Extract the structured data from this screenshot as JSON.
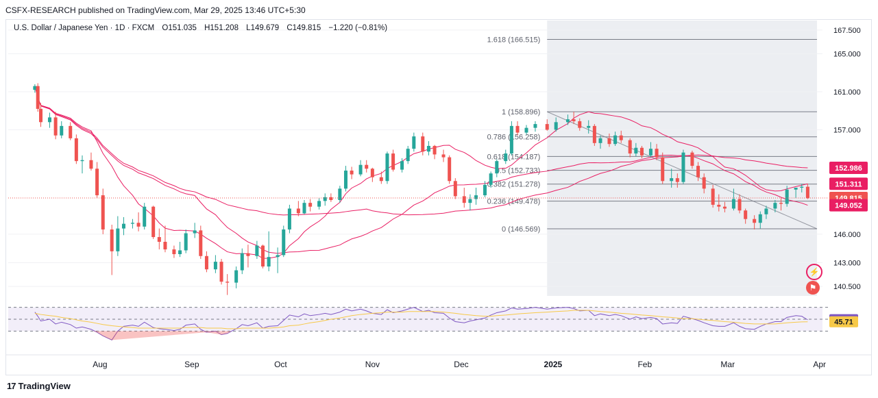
{
  "publisher_line": "CSFX-RESEARCH published on TradingView.com, Mar 29, 2025 13:46 UTC+5:30",
  "symbol": {
    "name": "U.S. Dollar / Japanese Yen · 1D · FXCM",
    "open": "O151.035",
    "high": "H151.208",
    "low": "L149.679",
    "close": "C149.815",
    "change": "−1.220 (−0.81%)"
  },
  "branding": "TradingView",
  "colors": {
    "up": "#26a69a",
    "down": "#ef5350",
    "ma": "#e91e63",
    "rsi": "#7e57c2",
    "rsi_ma": "#f7c948",
    "fib_box": "#eceef2"
  },
  "chart_data": [
    {
      "type": "candlestick",
      "title": "U.S. Dollar / Japanese Yen",
      "y_ticks": [
        "167.500",
        "165.000",
        "161.000",
        "157.000",
        "152.986",
        "151.311",
        "149.815",
        "149.052",
        "146.000",
        "143.000",
        "140.500"
      ],
      "x_ticks": [
        "Aug",
        "Sep",
        "Oct",
        "Nov",
        "Dec",
        "2025",
        "Feb",
        "Mar",
        "Apr"
      ],
      "ylim": [
        139.5,
        168.5
      ],
      "x": [
        "2024-07-10",
        "2024-07-11",
        "2024-07-12",
        "2024-07-15",
        "2024-07-17",
        "2024-07-19",
        "2024-07-22",
        "2024-07-24",
        "2024-07-26",
        "2024-07-29",
        "2024-07-31",
        "2024-08-02",
        "2024-08-05",
        "2024-08-07",
        "2024-08-09",
        "2024-08-12",
        "2024-08-14",
        "2024-08-16",
        "2024-08-19",
        "2024-08-21",
        "2024-08-23",
        "2024-08-26",
        "2024-08-28",
        "2024-08-30",
        "2024-09-02",
        "2024-09-04",
        "2024-09-06",
        "2024-09-09",
        "2024-09-11",
        "2024-09-13",
        "2024-09-16",
        "2024-09-18",
        "2024-09-20",
        "2024-09-23",
        "2024-09-25",
        "2024-09-27",
        "2024-09-30",
        "2024-10-02",
        "2024-10-04",
        "2024-10-07",
        "2024-10-09",
        "2024-10-11",
        "2024-10-14",
        "2024-10-16",
        "2024-10-18",
        "2024-10-21",
        "2024-10-23",
        "2024-10-25",
        "2024-10-28",
        "2024-10-30",
        "2024-11-01",
        "2024-11-04",
        "2024-11-06",
        "2024-11-08",
        "2024-11-11",
        "2024-11-13",
        "2024-11-15",
        "2024-11-18",
        "2024-11-20",
        "2024-11-22",
        "2024-11-25",
        "2024-11-27",
        "2024-11-29",
        "2024-12-02",
        "2024-12-04",
        "2024-12-06",
        "2024-12-09",
        "2024-12-11",
        "2024-12-13",
        "2024-12-16",
        "2024-12-18",
        "2024-12-20",
        "2024-12-23",
        "2024-12-26",
        "2024-12-30",
        "2025-01-02",
        "2025-01-06",
        "2025-01-08",
        "2025-01-10",
        "2025-01-13",
        "2025-01-15",
        "2025-01-17",
        "2025-01-20",
        "2025-01-22",
        "2025-01-24",
        "2025-01-27",
        "2025-01-29",
        "2025-01-31",
        "2025-02-03",
        "2025-02-05",
        "2025-02-07",
        "2025-02-10",
        "2025-02-12",
        "2025-02-14",
        "2025-02-17",
        "2025-02-19",
        "2025-02-21",
        "2025-02-24",
        "2025-02-26",
        "2025-02-28",
        "2025-03-03",
        "2025-03-05",
        "2025-03-07",
        "2025-03-10",
        "2025-03-12",
        "2025-03-14",
        "2025-03-17",
        "2025-03-19",
        "2025-03-21",
        "2025-03-24",
        "2025-03-26",
        "2025-03-28"
      ],
      "ohlc": [
        [
          161.2,
          161.8,
          160.9,
          161.6
        ],
        [
          161.6,
          161.9,
          158.9,
          159.2
        ],
        [
          159.2,
          159.8,
          157.3,
          157.8
        ],
        [
          157.8,
          158.8,
          157.2,
          158.3
        ],
        [
          158.3,
          158.9,
          156.0,
          156.4
        ],
        [
          156.4,
          157.9,
          156.1,
          157.4
        ],
        [
          157.4,
          157.8,
          155.9,
          156.1
        ],
        [
          156.1,
          156.5,
          153.4,
          153.7
        ],
        [
          153.7,
          154.3,
          152.4,
          153.8
        ],
        [
          153.8,
          154.6,
          152.7,
          152.9
        ],
        [
          152.9,
          153.6,
          149.8,
          150.1
        ],
        [
          150.1,
          150.8,
          146.0,
          146.5
        ],
        [
          146.5,
          147.0,
          141.7,
          144.2
        ],
        [
          144.2,
          147.9,
          143.7,
          146.6
        ],
        [
          146.6,
          147.8,
          145.9,
          147.1
        ],
        [
          147.1,
          147.6,
          146.6,
          147.2
        ],
        [
          147.2,
          148.3,
          146.3,
          146.8
        ],
        [
          146.8,
          149.3,
          146.5,
          148.9
        ],
        [
          148.9,
          149.0,
          145.5,
          145.7
        ],
        [
          145.7,
          146.6,
          144.4,
          145.2
        ],
        [
          145.2,
          146.9,
          144.1,
          144.4
        ],
        [
          144.4,
          144.8,
          143.5,
          143.9
        ],
        [
          143.9,
          145.2,
          143.6,
          144.3
        ],
        [
          144.3,
          146.5,
          144.0,
          146.1
        ],
        [
          146.1,
          147.2,
          145.6,
          146.4
        ],
        [
          146.4,
          146.9,
          143.4,
          143.7
        ],
        [
          143.7,
          144.2,
          142.0,
          142.3
        ],
        [
          142.3,
          143.8,
          141.9,
          143.1
        ],
        [
          143.1,
          143.4,
          140.7,
          141.0
        ],
        [
          141.0,
          141.8,
          139.6,
          140.9
        ],
        [
          140.9,
          142.6,
          140.3,
          142.2
        ],
        [
          142.2,
          144.5,
          141.8,
          144.0
        ],
        [
          144.0,
          144.9,
          142.5,
          143.7
        ],
        [
          143.7,
          145.3,
          143.4,
          144.8
        ],
        [
          144.8,
          144.9,
          142.4,
          142.6
        ],
        [
          142.6,
          146.3,
          142.1,
          143.6
        ],
        [
          143.6,
          144.6,
          141.9,
          143.8
        ],
        [
          143.8,
          146.9,
          143.6,
          146.5
        ],
        [
          146.5,
          149.1,
          146.1,
          148.7
        ],
        [
          148.7,
          149.5,
          147.9,
          148.2
        ],
        [
          148.2,
          149.6,
          148.1,
          149.3
        ],
        [
          149.3,
          149.7,
          148.4,
          148.9
        ],
        [
          148.9,
          149.8,
          148.6,
          149.5
        ],
        [
          149.5,
          150.3,
          149.0,
          149.9
        ],
        [
          149.9,
          150.3,
          149.4,
          149.6
        ],
        [
          149.6,
          151.1,
          149.3,
          150.8
        ],
        [
          150.8,
          153.2,
          150.5,
          152.7
        ],
        [
          152.7,
          153.1,
          151.8,
          152.3
        ],
        [
          152.3,
          153.8,
          152.1,
          153.3
        ],
        [
          153.3,
          153.8,
          152.5,
          152.9
        ],
        [
          152.9,
          153.0,
          151.5,
          152.0
        ],
        [
          152.0,
          152.6,
          151.3,
          151.6
        ],
        [
          151.6,
          154.7,
          151.3,
          154.5
        ],
        [
          154.5,
          154.9,
          152.6,
          152.8
        ],
        [
          152.8,
          154.0,
          152.5,
          153.7
        ],
        [
          153.7,
          155.3,
          153.4,
          155.0
        ],
        [
          155.0,
          156.7,
          154.7,
          156.3
        ],
        [
          156.3,
          156.7,
          154.3,
          154.7
        ],
        [
          154.7,
          155.8,
          154.3,
          155.3
        ],
        [
          155.3,
          155.4,
          153.9,
          154.4
        ],
        [
          154.4,
          154.9,
          153.6,
          154.1
        ],
        [
          154.1,
          154.3,
          151.3,
          151.6
        ],
        [
          151.6,
          151.9,
          149.7,
          150.0
        ],
        [
          150.0,
          150.9,
          148.8,
          149.3
        ],
        [
          149.3,
          150.2,
          148.5,
          149.7
        ],
        [
          149.7,
          150.9,
          149.1,
          150.1
        ],
        [
          150.1,
          151.6,
          149.9,
          151.2
        ],
        [
          151.2,
          152.6,
          150.9,
          152.4
        ],
        [
          152.4,
          153.9,
          152.0,
          153.7
        ],
        [
          153.7,
          154.9,
          153.4,
          154.5
        ],
        [
          154.5,
          157.9,
          154.3,
          157.4
        ],
        [
          157.4,
          157.9,
          156.4,
          156.7
        ],
        [
          156.7,
          157.5,
          156.5,
          157.2
        ],
        [
          157.2,
          157.9,
          156.8,
          157.6
        ],
        [
          157.6,
          158.1,
          156.9,
          157.0
        ],
        [
          157.0,
          158.3,
          156.8,
          157.8
        ],
        [
          157.8,
          158.6,
          157.5,
          158.1
        ],
        [
          158.1,
          158.9,
          157.6,
          157.9
        ],
        [
          157.9,
          158.2,
          156.9,
          157.2
        ],
        [
          157.2,
          158.0,
          156.6,
          157.4
        ],
        [
          157.4,
          157.6,
          155.3,
          155.6
        ],
        [
          155.6,
          156.4,
          155.0,
          156.1
        ],
        [
          156.1,
          156.6,
          155.2,
          155.5
        ],
        [
          155.5,
          156.8,
          155.3,
          156.4
        ],
        [
          156.4,
          156.9,
          155.6,
          155.9
        ],
        [
          155.9,
          156.1,
          154.1,
          154.5
        ],
        [
          154.5,
          155.6,
          154.2,
          155.1
        ],
        [
          155.1,
          155.3,
          154.0,
          154.3
        ],
        [
          154.3,
          155.7,
          154.1,
          155.0
        ],
        [
          155.0,
          155.5,
          153.8,
          154.1
        ],
        [
          154.1,
          154.6,
          151.3,
          151.6
        ],
        [
          151.6,
          152.9,
          150.9,
          151.9
        ],
        [
          151.9,
          152.4,
          150.9,
          151.5
        ],
        [
          151.5,
          154.9,
          151.3,
          154.6
        ],
        [
          154.6,
          154.8,
          152.9,
          153.2
        ],
        [
          153.2,
          153.6,
          151.6,
          152.0
        ],
        [
          152.0,
          152.4,
          150.3,
          150.8
        ],
        [
          150.8,
          151.2,
          148.8,
          149.1
        ],
        [
          149.1,
          150.2,
          148.4,
          148.9
        ],
        [
          148.9,
          149.4,
          148.3,
          148.7
        ],
        [
          148.7,
          150.8,
          148.5,
          149.7
        ],
        [
          149.7,
          150.2,
          148.2,
          148.5
        ],
        [
          148.5,
          148.7,
          147.1,
          147.6
        ],
        [
          147.6,
          148.0,
          146.5,
          147.2
        ],
        [
          147.2,
          148.4,
          146.6,
          148.1
        ],
        [
          148.1,
          149.0,
          147.6,
          148.7
        ],
        [
          148.7,
          149.6,
          148.3,
          149.3
        ],
        [
          149.3,
          149.8,
          148.5,
          149.2
        ],
        [
          149.2,
          151.1,
          148.9,
          150.7
        ],
        [
          150.7,
          150.9,
          149.8,
          150.9
        ],
        [
          150.9,
          151.3,
          150.4,
          151.0
        ],
        [
          151.0,
          151.3,
          149.7,
          149.8
        ]
      ],
      "moving_averages": [
        {
          "label_value": "152.986",
          "color": "#e91e63"
        },
        {
          "label_value": "151.311",
          "color": "#e91e63"
        },
        {
          "label_value": "149.052",
          "color": "#e91e63"
        }
      ],
      "last_price": "149.815",
      "fibonacci": [
        {
          "label": "1.618 (166.515)",
          "value": 166.515
        },
        {
          "label": "1 (158.896)",
          "value": 158.896
        },
        {
          "label": "0.786 (156.258)",
          "value": 156.258
        },
        {
          "label": "0.618 (154.187)",
          "value": 154.187
        },
        {
          "label": "0.5 (152.733)",
          "value": 152.733
        },
        {
          "label": "0.382 (151.278)",
          "value": 151.278
        },
        {
          "label": "0.236 (149.478)",
          "value": 149.478
        },
        {
          "label": "0 (146.569)",
          "value": 146.569
        }
      ]
    },
    {
      "type": "line",
      "title": "RSI",
      "ylim": [
        20,
        80
      ],
      "levels": [
        70,
        50,
        30
      ],
      "last_rsi": "49.23",
      "last_rsi_ma": "45.71",
      "rsi": [
        62,
        55,
        47,
        50,
        42,
        45,
        41,
        35,
        37,
        33,
        28,
        22,
        15,
        30,
        38,
        40,
        38,
        45,
        36,
        34,
        33,
        31,
        33,
        40,
        42,
        33,
        28,
        30,
        24,
        26,
        34,
        41,
        39,
        44,
        35,
        38,
        39,
        48,
        57,
        54,
        59,
        56,
        58,
        60,
        58,
        62,
        67,
        64,
        67,
        64,
        60,
        58,
        66,
        61,
        64,
        67,
        70,
        63,
        65,
        61,
        60,
        52,
        46,
        44,
        47,
        49,
        52,
        57,
        61,
        64,
        69,
        67,
        68,
        70,
        67,
        69,
        70,
        68,
        64,
        65,
        56,
        59,
        56,
        58,
        56,
        50,
        54,
        51,
        53,
        51,
        42,
        44,
        43,
        55,
        51,
        48,
        44,
        39,
        38,
        38,
        44,
        38,
        34,
        33,
        38,
        42,
        46,
        46,
        53,
        56,
        55,
        49
      ],
      "rsi_ma": [
        60,
        59,
        58,
        56,
        55,
        53,
        51,
        49,
        47,
        45,
        43,
        41,
        39,
        38,
        37,
        36,
        35,
        35,
        35,
        35,
        35,
        35,
        35,
        36,
        36,
        36,
        35,
        35,
        35,
        34,
        34,
        35,
        35,
        35,
        35,
        35,
        36,
        37,
        39,
        40,
        42,
        44,
        46,
        48,
        50,
        52,
        54,
        56,
        58,
        59,
        60,
        61,
        62,
        62,
        62,
        63,
        63,
        63,
        63,
        63,
        62,
        61,
        60,
        58,
        57,
        56,
        55,
        55,
        56,
        57,
        58,
        59,
        60,
        61,
        62,
        63,
        64,
        65,
        65,
        65,
        64,
        63,
        62,
        61,
        60,
        59,
        58,
        57,
        56,
        55,
        54,
        53,
        52,
        51,
        51,
        50,
        49,
        48,
        47,
        46,
        45,
        44,
        43,
        42,
        42,
        42,
        42,
        43,
        44,
        45,
        45.5,
        45.71
      ]
    }
  ]
}
